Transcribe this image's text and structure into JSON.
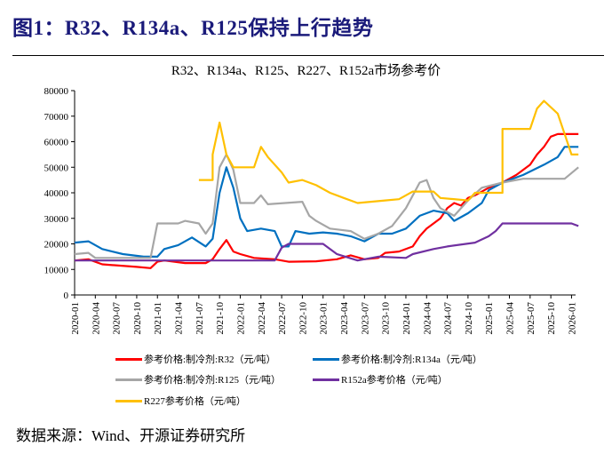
{
  "figure_title": "图1：R32、R134a、R125保持上行趋势",
  "source": "数据来源：Wind、开源证券研究所",
  "chart_data": {
    "type": "line",
    "title": "R32、R134a、R125、R227、R152a市场参考价",
    "xlabel": "",
    "ylabel": "",
    "ylim": [
      0,
      80000
    ],
    "yticks": [
      "0",
      "10000",
      "20000",
      "30000",
      "40000",
      "50000",
      "60000",
      "70000",
      "80000"
    ],
    "xticks": [
      "2020-01",
      "2020-04",
      "2020-07",
      "2020-10",
      "2021-01",
      "2021-04",
      "2021-07",
      "2021-10",
      "2022-01",
      "2022-04",
      "2022-07",
      "2022-10",
      "2023-01",
      "2023-04",
      "2023-07",
      "2023-10",
      "2024-01",
      "2024-04",
      "2024-07",
      "2024-10",
      "2025-01",
      "2025-04",
      "2025-07",
      "2025-10",
      "2026-01"
    ],
    "grid": false,
    "legend_position": "bottom",
    "x_unit": "months since 2020-01",
    "series": [
      {
        "name": "参考价格:制冷剂:R32（元/吨）",
        "color": "#ff0000",
        "points": [
          [
            0,
            13500
          ],
          [
            2,
            14000
          ],
          [
            4,
            12000
          ],
          [
            9,
            11000
          ],
          [
            11,
            10500
          ],
          [
            12,
            13000
          ],
          [
            13,
            13500
          ],
          [
            16,
            12500
          ],
          [
            19,
            12500
          ],
          [
            20,
            14000
          ],
          [
            21,
            18000
          ],
          [
            22,
            21500
          ],
          [
            23,
            17000
          ],
          [
            24,
            16000
          ],
          [
            26,
            14500
          ],
          [
            29,
            14000
          ],
          [
            31,
            13000
          ],
          [
            35,
            13200
          ],
          [
            38,
            14000
          ],
          [
            40,
            15500
          ],
          [
            42,
            14000
          ],
          [
            44,
            14500
          ],
          [
            45,
            16500
          ],
          [
            47,
            17000
          ],
          [
            49,
            19000
          ],
          [
            50,
            23000
          ],
          [
            51,
            26000
          ],
          [
            53,
            30000
          ],
          [
            54,
            34000
          ],
          [
            55,
            36000
          ],
          [
            56,
            35000
          ],
          [
            57,
            38000
          ],
          [
            58,
            39000
          ],
          [
            60,
            42000
          ],
          [
            62,
            44000
          ],
          [
            64,
            47000
          ],
          [
            66,
            51000
          ],
          [
            67,
            55000
          ],
          [
            68,
            58000
          ],
          [
            69,
            62000
          ],
          [
            70,
            63000
          ],
          [
            73,
            63000
          ]
        ]
      },
      {
        "name": "参考价格:制冷剂:R134a（元/吨）",
        "color": "#0070c0",
        "points": [
          [
            0,
            20500
          ],
          [
            2,
            21000
          ],
          [
            4,
            18000
          ],
          [
            7,
            16000
          ],
          [
            10,
            15000
          ],
          [
            12,
            15000
          ],
          [
            13,
            18000
          ],
          [
            15,
            19500
          ],
          [
            17,
            22500
          ],
          [
            19,
            19000
          ],
          [
            20,
            22000
          ],
          [
            21,
            40000
          ],
          [
            22,
            50000
          ],
          [
            23,
            42000
          ],
          [
            24,
            30000
          ],
          [
            25,
            25000
          ],
          [
            27,
            26000
          ],
          [
            29,
            25000
          ],
          [
            30,
            19000
          ],
          [
            31,
            19000
          ],
          [
            32,
            25000
          ],
          [
            34,
            24000
          ],
          [
            36,
            24500
          ],
          [
            38,
            24000
          ],
          [
            40,
            23000
          ],
          [
            42,
            21000
          ],
          [
            44,
            24000
          ],
          [
            46,
            24000
          ],
          [
            48,
            26000
          ],
          [
            50,
            31000
          ],
          [
            52,
            33000
          ],
          [
            54,
            32000
          ],
          [
            55,
            29000
          ],
          [
            57,
            32000
          ],
          [
            59,
            36000
          ],
          [
            60,
            41000
          ],
          [
            62,
            44000
          ],
          [
            65,
            47000
          ],
          [
            68,
            51000
          ],
          [
            70,
            54000
          ],
          [
            71,
            58000
          ],
          [
            73,
            58000
          ]
        ]
      },
      {
        "name": "参考价格:制冷剂:R125（元/吨）",
        "color": "#a6a6a6",
        "points": [
          [
            0,
            16000
          ],
          [
            2,
            16500
          ],
          [
            3,
            14500
          ],
          [
            11,
            14500
          ],
          [
            12,
            28000
          ],
          [
            15,
            28000
          ],
          [
            16,
            29000
          ],
          [
            18,
            28000
          ],
          [
            19,
            24000
          ],
          [
            20,
            28000
          ],
          [
            21,
            50000
          ],
          [
            22,
            55000
          ],
          [
            23,
            49000
          ],
          [
            24,
            36000
          ],
          [
            26,
            36000
          ],
          [
            27,
            39000
          ],
          [
            28,
            35500
          ],
          [
            33,
            36500
          ],
          [
            34,
            31000
          ],
          [
            35,
            29000
          ],
          [
            37,
            26000
          ],
          [
            40,
            25000
          ],
          [
            42,
            22000
          ],
          [
            44,
            24000
          ],
          [
            46,
            27000
          ],
          [
            48,
            34000
          ],
          [
            50,
            44000
          ],
          [
            51,
            45000
          ],
          [
            52,
            38000
          ],
          [
            53,
            34000
          ],
          [
            55,
            31000
          ],
          [
            57,
            37000
          ],
          [
            59,
            42000
          ],
          [
            62,
            44000
          ],
          [
            65,
            45500
          ],
          [
            71,
            45500
          ],
          [
            73,
            50000
          ]
        ]
      },
      {
        "name": "R152a参考价格（元/吨）",
        "color": "#7030a0",
        "points": [
          [
            0,
            13500
          ],
          [
            29,
            13500
          ],
          [
            30,
            18500
          ],
          [
            31,
            20000
          ],
          [
            36,
            20000
          ],
          [
            38,
            16000
          ],
          [
            41,
            13500
          ],
          [
            44,
            15000
          ],
          [
            48,
            14500
          ],
          [
            49,
            16000
          ],
          [
            52,
            18000
          ],
          [
            54,
            19000
          ],
          [
            58,
            20500
          ],
          [
            60,
            23000
          ],
          [
            61,
            25000
          ],
          [
            62,
            28000
          ],
          [
            72,
            28000
          ],
          [
            73,
            27000
          ]
        ]
      },
      {
        "name": "R227参考价格（元/吨）",
        "color": "#ffc000",
        "points": [
          [
            18,
            45000
          ],
          [
            20,
            45000
          ],
          [
            20,
            55000
          ],
          [
            21,
            67500
          ],
          [
            22,
            55000
          ],
          [
            23,
            50000
          ],
          [
            26,
            50000
          ],
          [
            27,
            58000
          ],
          [
            28,
            54000
          ],
          [
            30,
            48000
          ],
          [
            31,
            44000
          ],
          [
            33,
            45000
          ],
          [
            35,
            43000
          ],
          [
            37,
            40000
          ],
          [
            39,
            38000
          ],
          [
            41,
            36000
          ],
          [
            45,
            37000
          ],
          [
            47,
            37500
          ],
          [
            49,
            40500
          ],
          [
            52,
            40500
          ],
          [
            53,
            38000
          ],
          [
            57,
            37000
          ],
          [
            58,
            40000
          ],
          [
            60,
            40000
          ],
          [
            62,
            40000
          ],
          [
            62,
            65000
          ],
          [
            66,
            65000
          ],
          [
            67,
            73000
          ],
          [
            68,
            76000
          ],
          [
            70,
            71000
          ],
          [
            71,
            63000
          ],
          [
            72,
            55000
          ],
          [
            73,
            55000
          ]
        ]
      }
    ]
  }
}
